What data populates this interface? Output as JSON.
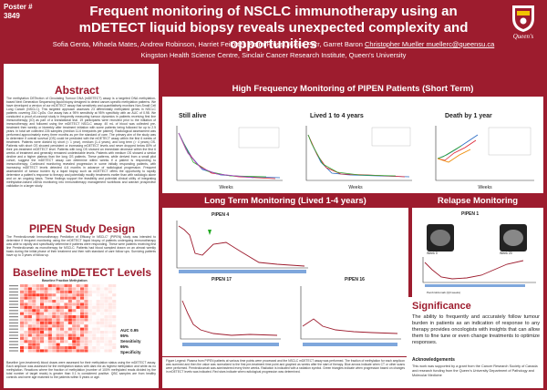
{
  "header": {
    "poster_label": "Poster #",
    "poster_number": "3849",
    "title": "Frequent monitoring of NSCLC immunotherapy using an mDETECT liquid biopsy reveals unexpected complexity and opportunities",
    "authors": "Sofia Genta, Mihaela Mates, Andrew Robinson, Harriet Feilotter, Keira Frossl, Keira Parr, Garret Baron",
    "contact": "Christopher Mueller muellerc@queensu.ca",
    "affiliation": "Kingston Health Science Centre, Sinclair Cancer Research Institute, Queen's University",
    "logo_text": "Queen's"
  },
  "abstract": {
    "heading": "Abstract",
    "text": "The methylation DETection of Circulating Tumour DNA (mDETECT) assay is a targeted DNA methylation-based Next Generation Sequencing liquid biopsy designed to detect cancer-specific methylation patterns. We have developed a version of our mDETECT assay that sensitively and quantitatively monitors Non-Small Cell Lung Cancer (NSCLC). This targeted approach assesses 23 differentially methylated genes in NSCLC patients covering 234 CpGs. Our assay has a 95% sensitivity at 95% specificity with an AUC of 0.98. We conducted a proof-of-concept study in frequently measuring tumour dynamics in patients receiving first line immunotherapy (IO) as part of a translational trial. 19 participants were recruited prior to the initiation of immunotherapy and followed using the mDETECT NSCLC assay. 40 mL of blood was collected pre-treatment then weekly or biweekly after treatment initiation with some patients being followed for up to 2.5 years. In total we collected 226 samples (median 11.6 timepoints per patient). Radiological assessment was performed approximately every three months as per the standard of care. The primary aim of the study was to determine if overall survival (OS) could be predicted with the mDETECT assay within the first 6 weeks of treatment. Patients were divided by short (< 1 year), medium (1-4 years), and long term (> 4 years) OS. Patients with short OS showed persistent or increasing mDETECT levels and never dropped below 80% of their pre-treatment mDETECT level. Patients with long OS showed an immediate decrease within the first 6 weeks of treatment and generally remained undetectable levels. Patients with medium OS showed a similar decline and a higher plateau than the long OS patients. These patterns, while derived from a small pilot cohort, suggest the mDETECT assay can determine within weeks if a patient is responding to immunotherapy. Continued monitoring revealed progression in some initially responding patients, with increasing mDETECT levels detected 4-6 months in advance of radiological progression. Frequent assessment of tumour burden by a liquid biopsy such as mDETECT offers the opportunity to rapidly determine a patient's response to therapy and potentially modify treatments earlier than with radiologic alone and on an ongoing basis. These findings support the feasibility and potential clinical utility of integrating methylation-based ctDNA monitoring into immunotherapy management workflows and warrant prospective validation in a larger study."
  },
  "pipen_design": {
    "heading": "PIPEN Study Design",
    "text": "The Pembrolizumab Immunotherapy Prediction of Efficacy in NSCLC\" (PIPEN) study was intended to determine if frequent monitoring using the mDETECT liquid biopsy of patients undergoing immunotherapy was able to rapidly and specifically determine if patients were responding. These were patients receiving first line Pembrolizumab as monotherapy for NSCLC. Patients had blood sampled drawn on an almost weekly basis during the initial phase of their treatment and then with standard of care follow ups. Surviving patients have up to 3 years of follow up."
  },
  "baseline": {
    "heading": "Baseline mDETECT Levels",
    "heatmap_title": "Baseline Fraction Methylation",
    "auc_lines": [
      "AUC 0.95",
      "95%",
      "Sensitivity",
      "95%",
      "Specificity"
    ],
    "text": "Baseline (pre-treatment) blood draws were assessed for their methylation status using the mDETECT assay. Each amplicon was assessed for the methylation status with dark red as highest methylation and white as no methylation. Reactions where the fraction of methylation (number of 100% methylated reads divided by the total number of target reads) is greater than 0.1 is considered positive. QBC samples are from healthy controls and were age matched to the patients within 5 years or age."
  },
  "short_term": {
    "heading": "High Frequency Monitoring of PIPEN Patients (Short Term)",
    "still_alive": "Still alive",
    "lived": "Lived 1 to 4 years",
    "death": "Death by 1 year",
    "xlabel": "Weeks"
  },
  "long_term": {
    "heading": "Long Term Monitoring (Lived 1-4 years)",
    "charts": [
      "PIPEN 4",
      "PIPEN 17",
      "PIPEN 16"
    ]
  },
  "relapse": {
    "heading": "Relapse Monitoring",
    "chart_title": "PIPEN 1",
    "scan_labels": [
      "Week 0",
      "Week 20"
    ],
    "treatment_label": "Pembrolizumab (Q3 weeks)"
  },
  "caption": "Figure Legend: Plasma from PIPEN patients at various time points were processed and the NSCLC mDETECT assay was performed. The fraction of methylation for each amplicon was summed and then the value was normalized to the first pre-treatment time point and graphed as weeks after the start of therapy. Blue arrows indicate when CT or other scans were performed. Pembrolizumab was administered every three weeks. Radiation is indicated with a radiation symbol. Green triangles indicate when progression based on changes in mDETECT levels was indicated. Red stars indicate when radiological progression was determined.",
  "significance": {
    "heading": "Significance",
    "text": "The ability to frequently and accurately follow tumour burden in patients as an indication of response to any therapy provides oncologists with insights that can allow them to fine tune or even change treatments to optimize responses."
  },
  "ack": {
    "heading": "Acknowledgements",
    "text": "This work was supported by a grant from the Cancer Research Society of Canada and research funding from the Queen's University Department of Pathology and Molecular Medicine"
  },
  "colors": {
    "brand": "#9d1c2e",
    "panel": "#ffffff"
  }
}
